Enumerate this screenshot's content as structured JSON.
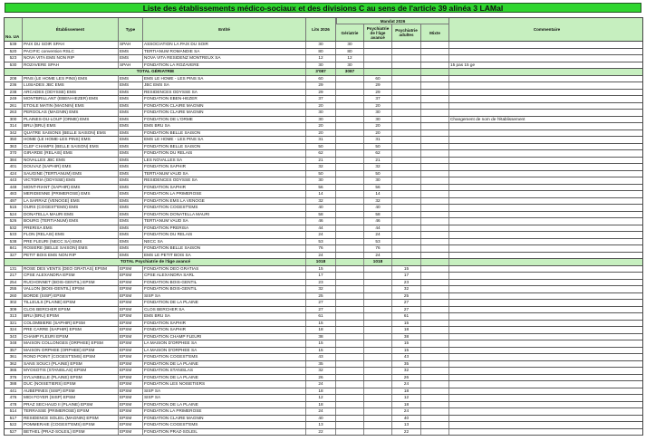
{
  "title": "Liste des établissements médico-sociaux et des divisions C au sens de l'article 39 alinéa 3 LAMal",
  "header": {
    "no_ua": "No. UA",
    "etablissement": "Établissement",
    "type": "Type",
    "entite": "Entité",
    "lits": "Lits 2026",
    "mandat": "Mandat 2026",
    "geriatrie": "Gériatrie",
    "psy_age": "Psychiatrie de l'âge avancé",
    "psy_adultes": "Psychiatrie adultes",
    "mixte": "Mixte",
    "commentaire": "Commentaire"
  },
  "colors": {
    "title_bg": "#2fd62f",
    "header_bg": "#c6efbf",
    "total_bg": "#c6efbf"
  },
  "rows": [
    [
      "539",
      "PAIX DU SOIR SPAH",
      "SPAH",
      "ASSOCIATION LA PAIX DU SOIR",
      "30",
      "30",
      "",
      "",
      "",
      ""
    ],
    [
      "520",
      "PACIFIC convention RSLC",
      "EMS",
      "TERTIANUM ROMANDIE SA",
      "80",
      "80",
      "",
      "",
      "",
      ""
    ],
    [
      "523",
      "NOVA VITA EMS NON RIP",
      "EMS",
      "NOVA VITA RESIDENZ MONTREUX SA",
      "12",
      "12",
      "",
      "",
      "",
      ""
    ],
    [
      "530",
      "ROZAVERE SPAH",
      "SPAH",
      "FONDATION LA ROZAVERE",
      "30",
      "30",
      "",
      "",
      "",
      "15 pas 15 ge"
    ],
    {
      "total": "TOTAL GÉRIATRIE",
      "lits": "3'087",
      "geriatrie": "3087",
      "psy_age": ""
    },
    [
      "208",
      "PINS (LE HOME LES PINS) EMS",
      "EMS",
      "EMS LE HOME - LES PINS SA",
      "60",
      "",
      "60",
      "",
      "",
      ""
    ],
    [
      "236",
      "LUSIADES JBC EMS",
      "EMS",
      "JBC EMS SA",
      "29",
      "",
      "29",
      "",
      "",
      ""
    ],
    [
      "238",
      "ARCADES (ODYSSE) EMS",
      "EMS",
      "RESIDENCES ODYSSE SA",
      "29",
      "",
      "29",
      "",
      "",
      ""
    ],
    [
      "249",
      "MONTBRILLANT (EBEN-HEZER) EMS",
      "EMS",
      "FONDATION EBEN-HEZER",
      "37",
      "",
      "37",
      "",
      "",
      ""
    ],
    [
      "261",
      "ETOILE MATIN (MAGNIN) EMS",
      "EMS",
      "FONDATION CLAIRE MAGNIN",
      "20",
      "",
      "20",
      "",
      "",
      ""
    ],
    [
      "263",
      "PERGOLAS (MAGNIN) EMS",
      "EMS",
      "FONDATION CLAIRE MAGNIN",
      "30",
      "",
      "30",
      "",
      "",
      ""
    ],
    [
      "300",
      "PLAINES-DU-LOUP (ORME) EMS",
      "EMS",
      "FONDATION DE L'ORME",
      "30",
      "",
      "30",
      "",
      "",
      "Changement de nom de l'établissement"
    ],
    [
      "314",
      "BRU (BRU) EMS",
      "EMS",
      "EMS BRU SA",
      "20",
      "",
      "20",
      "",
      "",
      ""
    ],
    [
      "342",
      "QUATRE SAISONS (BELLE SAISON) EMS",
      "EMS",
      "FONDATION BELLE SAISON",
      "20",
      "",
      "20",
      "",
      "",
      ""
    ],
    [
      "350",
      "HOME (LE HOME-LES PINS) EMS",
      "EMS",
      "EMS LE HOME - LES PINS SA",
      "31",
      "",
      "31",
      "",
      "",
      ""
    ],
    [
      "363",
      "CLEF CHAMPS (BELLE SAISON) EMS",
      "EMS",
      "FONDATION BELLE SAISON",
      "50",
      "",
      "50",
      "",
      "",
      ""
    ],
    [
      "370",
      "GIRARDE (RELAIS) EMS",
      "EMS",
      "FONDATION DU RELAIS",
      "62",
      "",
      "62",
      "",
      "",
      ""
    ],
    [
      "384",
      "NOVALLES JBC EMS",
      "EMS",
      "LES NOVALLES SA",
      "21",
      "",
      "21",
      "",
      "",
      ""
    ],
    [
      "401",
      "DOUVAZ (SAPHIR) EMS",
      "EMS",
      "FONDATION SAPHIR",
      "32",
      "",
      "32",
      "",
      "",
      ""
    ],
    [
      "424",
      "SAUGINE (TERTIANUM) EMS",
      "EMS",
      "TERTIANUM VAUD SA",
      "50",
      "",
      "50",
      "",
      "",
      ""
    ],
    [
      "443",
      "VICTORIA (ODYSSE) EMS",
      "EMS",
      "RESIDENCES ODYSSE SA",
      "30",
      "",
      "30",
      "",
      "",
      ""
    ],
    [
      "448",
      "MONT-RIANT (SAPHIR) EMS",
      "EMS",
      "FONDATION SAPHIR",
      "56",
      "",
      "56",
      "",
      "",
      ""
    ],
    [
      "483",
      "MERIDIENNE (PRIMEROSE) EMS",
      "EMS",
      "FONDATION LA PRIMEROSE",
      "14",
      "",
      "14",
      "",
      "",
      ""
    ],
    [
      "497",
      "LA SARRAZ (VENOGE) EMS",
      "EMS",
      "FONDATION EMS LA VENOGE",
      "32",
      "",
      "32",
      "",
      "",
      ""
    ],
    [
      "515",
      "OURS (COGEST'EMS) EMS",
      "EMS",
      "FONDATION COGEST'EMS",
      "40",
      "",
      "40",
      "",
      "",
      ""
    ],
    [
      "524",
      "DONATELLA MAURI EMS",
      "EMS",
      "FONDATION DONATELLA MAURI",
      "58",
      "",
      "58",
      "",
      "",
      ""
    ],
    [
      "526",
      "BOURG (TERTIANUM) EMS",
      "EMS",
      "TERTIANUM VAUD SA",
      "46",
      "",
      "46",
      "",
      "",
      ""
    ],
    [
      "532",
      "PRERISA EMS",
      "EMS",
      "FONDATION PRERISA",
      "44",
      "",
      "44",
      "",
      "",
      ""
    ],
    [
      "533",
      "FLON (RELAIS) EMS",
      "EMS",
      "FONDATION DU RELAIS",
      "24",
      "",
      "24",
      "",
      "",
      ""
    ],
    [
      "538",
      "PRE FLEURI (NECC SA) EMS",
      "EMS",
      "NECC SA",
      "53",
      "",
      "53",
      "",
      "",
      ""
    ],
    [
      "841",
      "ROSIERE (BELLE SAISON) EMS",
      "EMS",
      "FONDATION BELLE SAISON",
      "76",
      "",
      "76",
      "",
      "",
      ""
    ],
    [
      "327",
      "PETIT BOIS EMS NON RIP",
      "EMS",
      "EMS LE PETIT BOIS SA",
      "24",
      "",
      "24",
      "",
      "",
      ""
    ],
    {
      "total": "TOTAL Psychiatrie de l'âge avancé",
      "lits": "1018",
      "geriatrie": "",
      "psy_age": "1018"
    },
    [
      "131",
      "ROSE DES VENTS (DEO GRATIAS) EPSM",
      "EPSM",
      "FONDATION DEO GRATIAS",
      "15",
      "",
      "",
      "15",
      "",
      ""
    ],
    [
      "217",
      "CPSE ALEXANDRA EPSM",
      "EPSM",
      "CPSE ALEXANDRA SARL",
      "17",
      "",
      "",
      "17",
      "",
      ""
    ],
    [
      "254",
      "RUCHONNET (BOIS-GENTIL) EPSM",
      "EPSM",
      "FONDATION BOIS-GENTIL",
      "23",
      "",
      "",
      "23",
      "",
      ""
    ],
    [
      "255",
      "VALLON (BOIS-GENTIL) EPSM",
      "EPSM",
      "FONDATION BOIS-GENTIL",
      "32",
      "",
      "",
      "32",
      "",
      ""
    ],
    [
      "260",
      "BORDE (SISP) EPSM",
      "EPSM",
      "SISP SA",
      "25",
      "",
      "",
      "25",
      "",
      ""
    ],
    [
      "302",
      "TILLEULS (PLAINE) EPSM",
      "EPSM",
      "FONDATION DE LA PLAINE",
      "27",
      "",
      "",
      "27",
      "",
      ""
    ],
    [
      "309",
      "CLOS BERCHER EPSM",
      "EPSM",
      "CLOS BERCHER SA",
      "27",
      "",
      "",
      "27",
      "",
      ""
    ],
    [
      "313",
      "BRU (BRU) EPSM",
      "EPSM",
      "EMS BRU SA",
      "61",
      "",
      "",
      "61",
      "",
      ""
    ],
    [
      "321",
      "COLOMBIERE (SAPHIR) EPSM",
      "EPSM",
      "FONDATION SAPHIR",
      "15",
      "",
      "",
      "15",
      "",
      ""
    ],
    [
      "324",
      "PRE CARRE (SAPHIR) EPSM",
      "EPSM",
      "FONDATION SAPHIR",
      "18",
      "",
      "",
      "18",
      "",
      ""
    ],
    [
      "343",
      "CHAMP FLEURI EPSM",
      "EPSM",
      "FONDATION CHAMP FLEURI",
      "38",
      "",
      "",
      "38",
      "",
      ""
    ],
    [
      "348",
      "MAISON COLLONGES (ORPHEE) EPSM",
      "EPSM",
      "LA MAISON D'ORPHEE SA",
      "15",
      "",
      "",
      "15",
      "",
      ""
    ],
    [
      "357",
      "MAISON ORPHEE (ORPHEE) EPSM",
      "EPSM",
      "LA MAISON D'ORPHEE SA",
      "15",
      "",
      "",
      "15",
      "",
      ""
    ],
    [
      "361",
      "ROND POINT (COGEST'EMS) EPSM",
      "EPSM",
      "FONDATION COGEST'EMS",
      "43",
      "",
      "",
      "43",
      "",
      ""
    ],
    [
      "362",
      "SANS SOUCI (PLAINE) EPSM",
      "EPSM",
      "FONDATION DE LA PLAINE",
      "35",
      "",
      "",
      "35",
      "",
      ""
    ],
    [
      "365",
      "MYOSOTIS (STANISLAS) EPSM",
      "EPSM",
      "FONDATION STANISLAS",
      "32",
      "",
      "",
      "32",
      "",
      ""
    ],
    [
      "376",
      "SYLVABELLE (PLAINE) EPSM",
      "EPSM",
      "FONDATION DE LA PLAINE",
      "26",
      "",
      "",
      "26",
      "",
      ""
    ],
    [
      "388",
      "DUC (NOISETIERS) EPSM",
      "EPSM",
      "FONDATION LES NOISETIERS",
      "24",
      "",
      "",
      "24",
      "",
      ""
    ],
    [
      "441",
      "AUBEPINES (SISP) EPSM",
      "EPSM",
      "SISP SA",
      "18",
      "",
      "",
      "18",
      "",
      ""
    ],
    [
      "476",
      "MIDI FOYER (SISP) EPSM",
      "EPSM",
      "SISP SA",
      "12",
      "",
      "",
      "12",
      "",
      ""
    ],
    [
      "478",
      "PRAZ SECHAUD II (PLAINE) EPSM",
      "EPSM",
      "FONDATION DE LA PLAINE",
      "18",
      "",
      "",
      "18",
      "",
      ""
    ],
    [
      "514",
      "TERRASSE (PRIMEROSE) EPSM",
      "EPSM",
      "FONDATION LA PRIMEROSE",
      "24",
      "",
      "",
      "24",
      "",
      ""
    ],
    [
      "517",
      "RESIDENCE SOLEIL (MAGNIN) EPSM",
      "EPSM",
      "FONDATION CLAIRE MAGNIN",
      "40",
      "",
      "",
      "40",
      "",
      ""
    ],
    [
      "522",
      "POMMERAIE (COGEST'EMS) EPSM",
      "EPSM",
      "FONDATION COGEST'EMS",
      "13",
      "",
      "",
      "13",
      "",
      ""
    ],
    [
      "527",
      "BETHEL (PRAZ-SOLEIL) EPSM",
      "EPSM",
      "FONDATION PRAZ-SOLEIL",
      "22",
      "",
      "",
      "22",
      "",
      ""
    ]
  ]
}
